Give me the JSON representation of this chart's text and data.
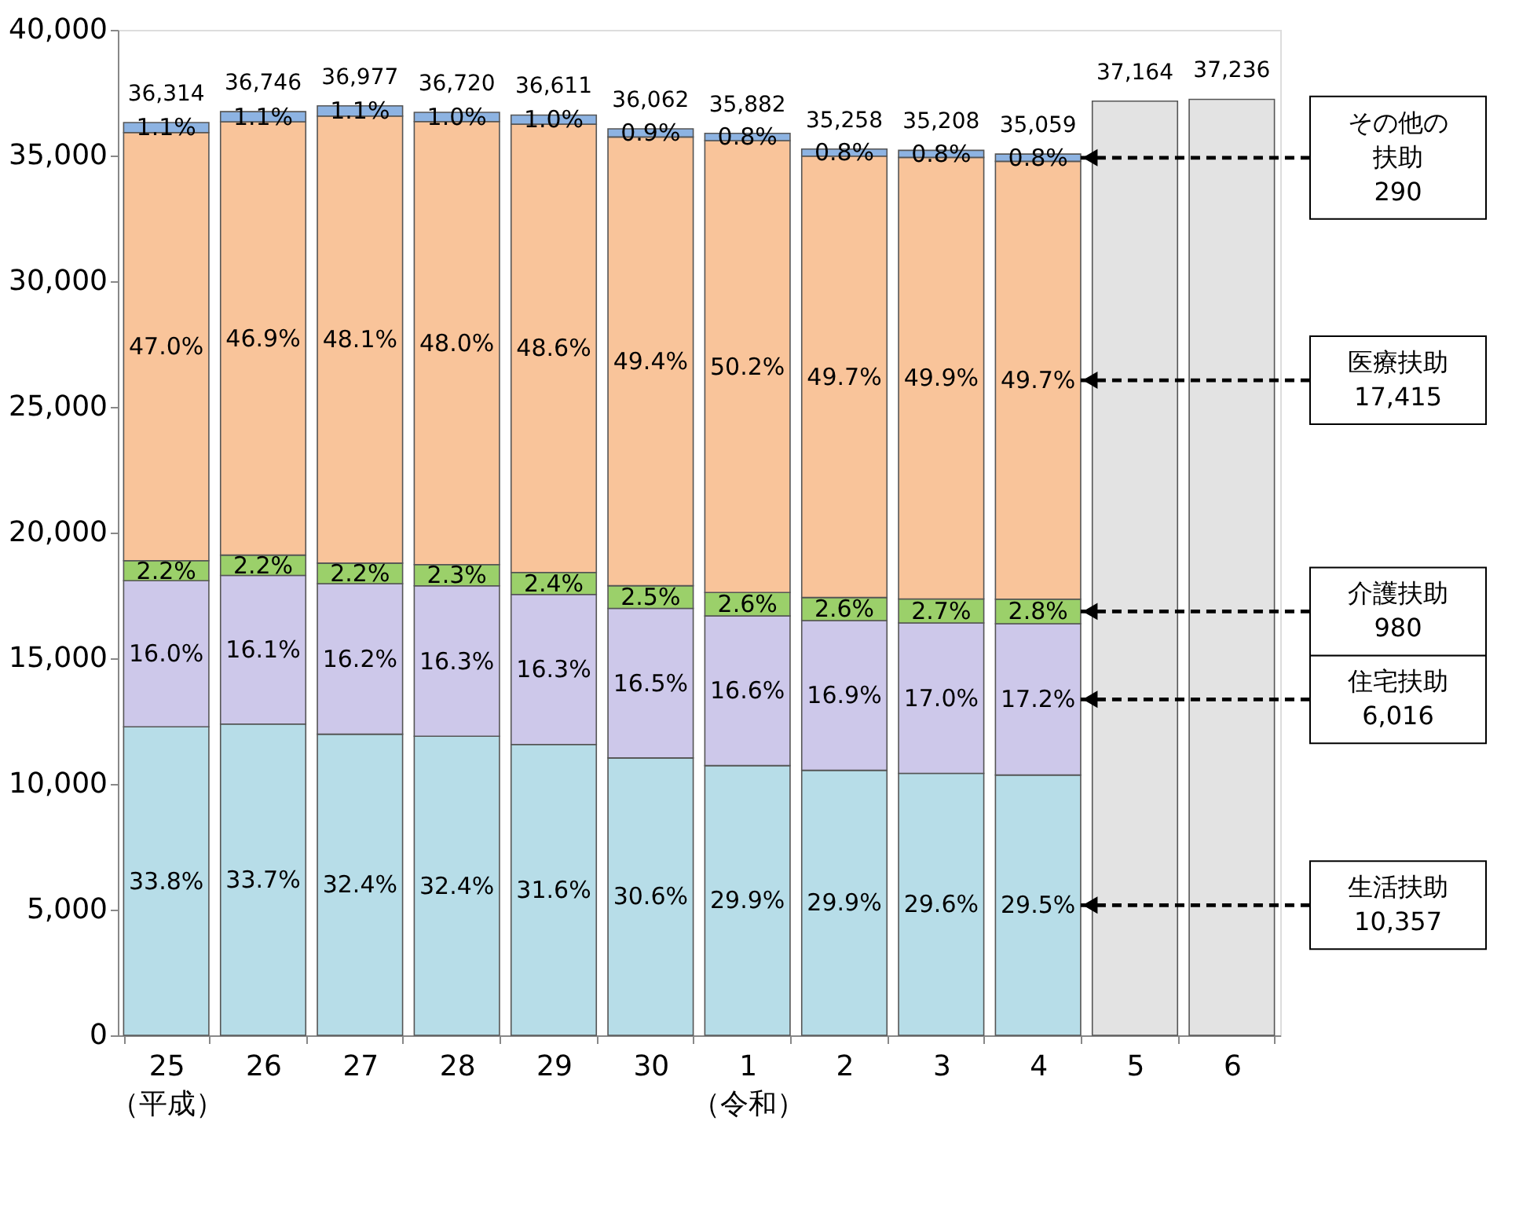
{
  "chart_data": {
    "type": "bar",
    "stacked": true,
    "grid": false,
    "categories": [
      "25\n（平成）",
      "26",
      "27",
      "28",
      "29",
      "30",
      "1\n（令和）",
      "2",
      "3",
      "4",
      "5",
      "6"
    ],
    "ylim": [
      0,
      40000
    ],
    "yticks": [
      {
        "value": 0,
        "label": "0"
      },
      {
        "value": 5000,
        "label": "5,000"
      },
      {
        "value": 10000,
        "label": "10,000"
      },
      {
        "value": 15000,
        "label": "15,000"
      },
      {
        "value": 20000,
        "label": "20,000"
      },
      {
        "value": 25000,
        "label": "25,000"
      },
      {
        "value": 30000,
        "label": "30,000"
      },
      {
        "value": 35000,
        "label": "35,000"
      },
      {
        "value": 40000,
        "label": "40,000"
      }
    ],
    "series": [
      {
        "color": "#b7dde8",
        "values": [
          12274,
          12383,
          11981,
          11897,
          11569,
          11035,
          10729,
          10542,
          10422,
          10357,
          null,
          null
        ]
      },
      {
        "color": "#cdc8ea",
        "values": [
          5810,
          5916,
          5990,
          5985,
          5968,
          5950,
          5956,
          5959,
          5985,
          6016,
          null,
          null
        ]
      },
      {
        "color": "#9bd06a",
        "values": [
          799,
          808,
          813,
          845,
          879,
          902,
          933,
          917,
          951,
          980,
          null,
          null
        ]
      },
      {
        "color": "#f9c49a",
        "values": [
          17032,
          17235,
          17786,
          17626,
          17829,
          17850,
          17977,
          17558,
          17568,
          17415,
          null,
          null
        ]
      },
      {
        "color": "#8db3e2",
        "values": [
          399,
          404,
          407,
          367,
          366,
          325,
          287,
          282,
          282,
          290,
          null,
          null
        ]
      },
      {
        "color": "#e3e3e3",
        "values": [
          null,
          null,
          null,
          null,
          null,
          null,
          null,
          null,
          null,
          null,
          37164,
          37236
        ]
      }
    ],
    "totals": [
      "36,314",
      "36,746",
      "36,977",
      "36,720",
      "36,611",
      "36,062",
      "35,882",
      "35,258",
      "35,208",
      "35,059",
      "37,164",
      "37,236"
    ],
    "annotations": [
      "33.8%",
      "16.0%",
      "2.2%",
      "47.0%",
      "1.1%",
      "33.7%",
      "16.1%",
      "2.2%",
      "46.9%",
      "1.1%",
      "32.4%",
      "16.2%",
      "2.2%",
      "48.1%",
      "1.1%",
      "32.4%",
      "16.3%",
      "2.3%",
      "48.0%",
      "1.0%",
      "31.6%",
      "16.3%",
      "2.4%",
      "48.6%",
      "1.0%",
      "30.6%",
      "16.5%",
      "2.5%",
      "49.4%",
      "0.9%",
      "29.9%",
      "16.6%",
      "2.6%",
      "50.2%",
      "0.8%",
      "29.9%",
      "16.9%",
      "2.6%",
      "49.7%",
      "0.8%",
      "29.6%",
      "17.0%",
      "2.7%",
      "49.9%",
      "0.8%",
      "29.5%",
      "17.2%",
      "2.8%",
      "49.7%",
      "0.8%",
      "生活扶助\n10,357",
      "住宅扶助\n6,016",
      "介護扶助\n980",
      "医療扶助\n17,415",
      "その他の扶助\n290"
    ]
  }
}
